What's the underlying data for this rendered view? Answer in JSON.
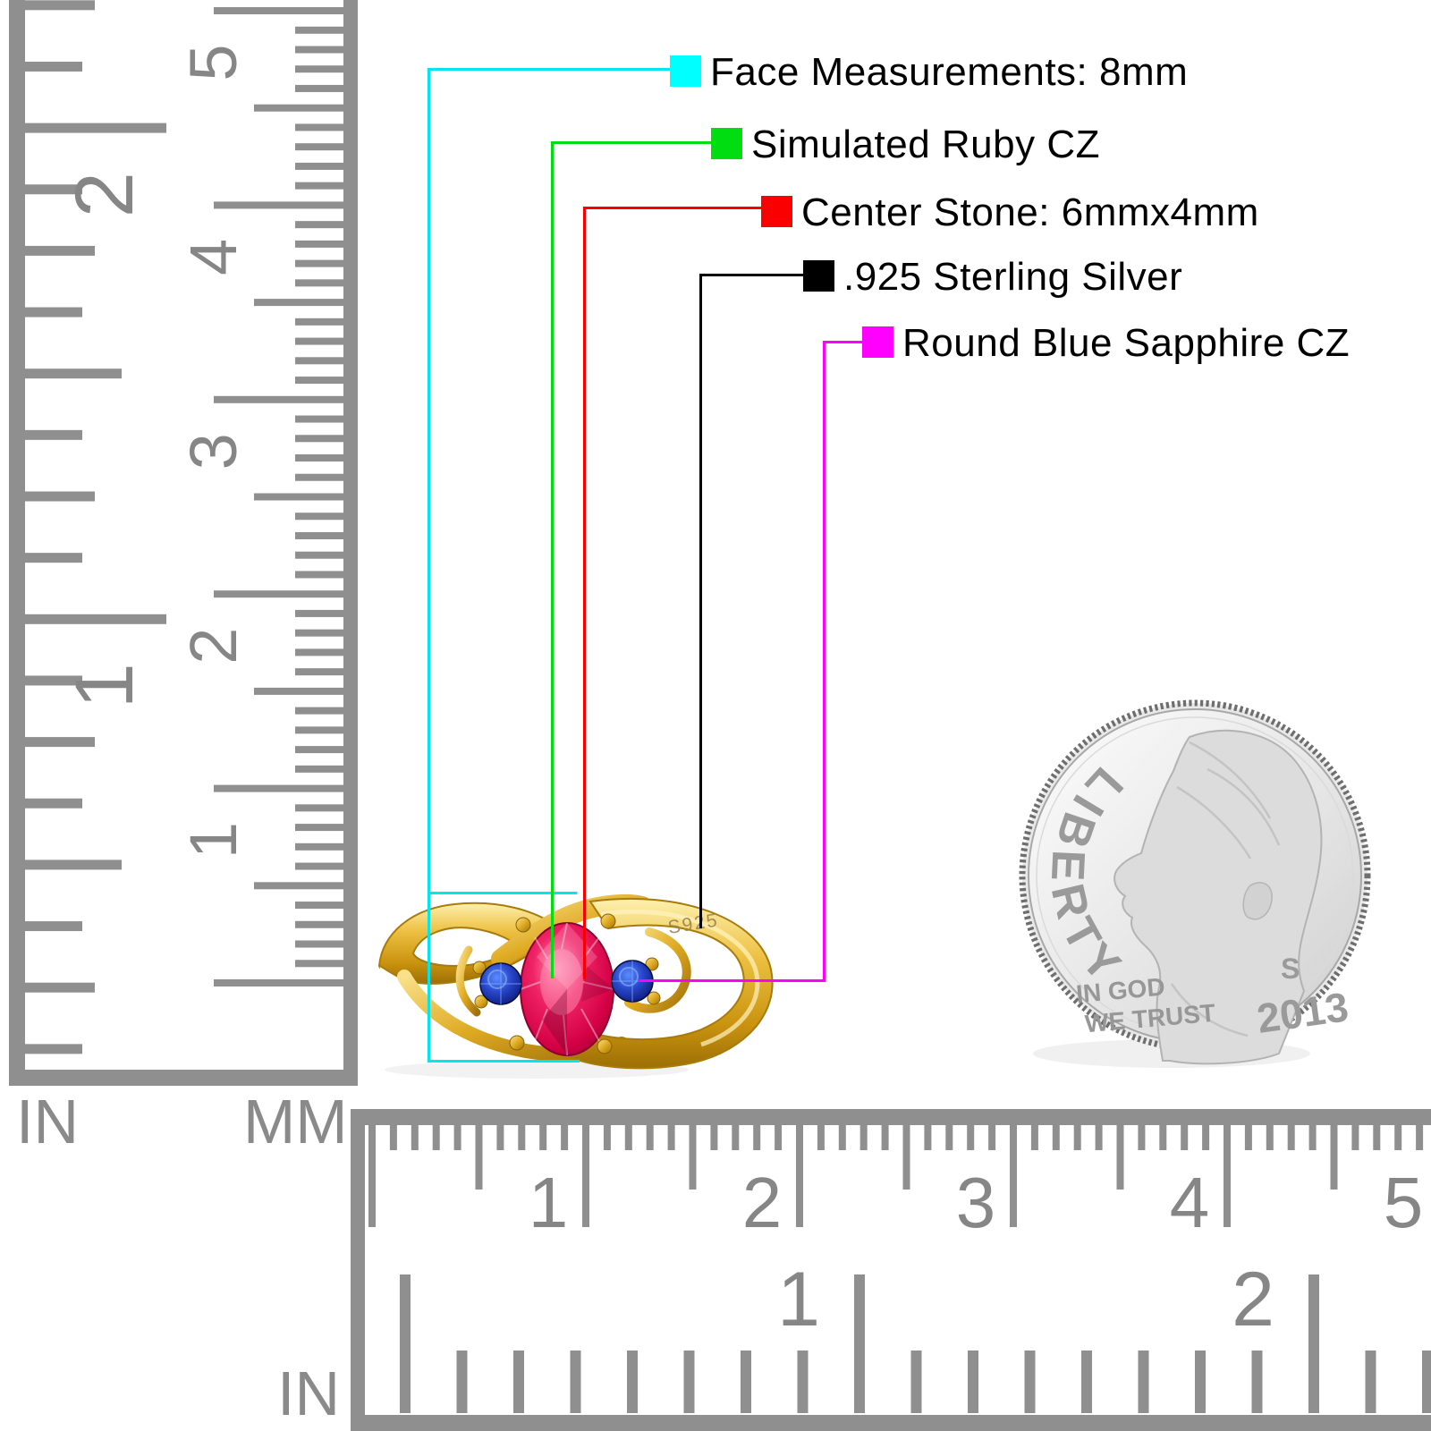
{
  "callouts": [
    {
      "label": "Face Measurements: 8mm",
      "color": "#00e5ee",
      "swatch": "#00ffff"
    },
    {
      "label": "Simulated Ruby CZ",
      "color": "#00dd11",
      "swatch": "#00dd11"
    },
    {
      "label": "Center Stone: 6mmx4mm",
      "color": "#f80000",
      "swatch": "#fa0000"
    },
    {
      "label": ".925 Sterling Silver",
      "color": "#000000",
      "swatch": "#000000"
    },
    {
      "label": "Round Blue Sapphire CZ",
      "color": "#ff00ff",
      "swatch": "#ff00ff"
    }
  ],
  "ring": {
    "engraving": "S925",
    "metal_color": "#e7bb2e",
    "center_stone_color": "#d40045",
    "side_stone_color": "#1a2fa0"
  },
  "coin": {
    "legend": "LIBERTY",
    "motto_line1": "IN GOD",
    "motto_line2": "WE TRUST",
    "mint_mark": "S",
    "year": "2013"
  },
  "rulers": {
    "left": {
      "inch_label": "IN",
      "mm_label": "MM",
      "inch_numbers": [
        "1",
        "2"
      ],
      "cm_numbers": [
        "1",
        "2",
        "3",
        "4",
        "5"
      ]
    },
    "bottom": {
      "inch_label": "IN",
      "inch_numbers": [
        "1",
        "2"
      ],
      "cm_numbers": [
        "1",
        "2",
        "3",
        "4",
        "5"
      ]
    }
  }
}
